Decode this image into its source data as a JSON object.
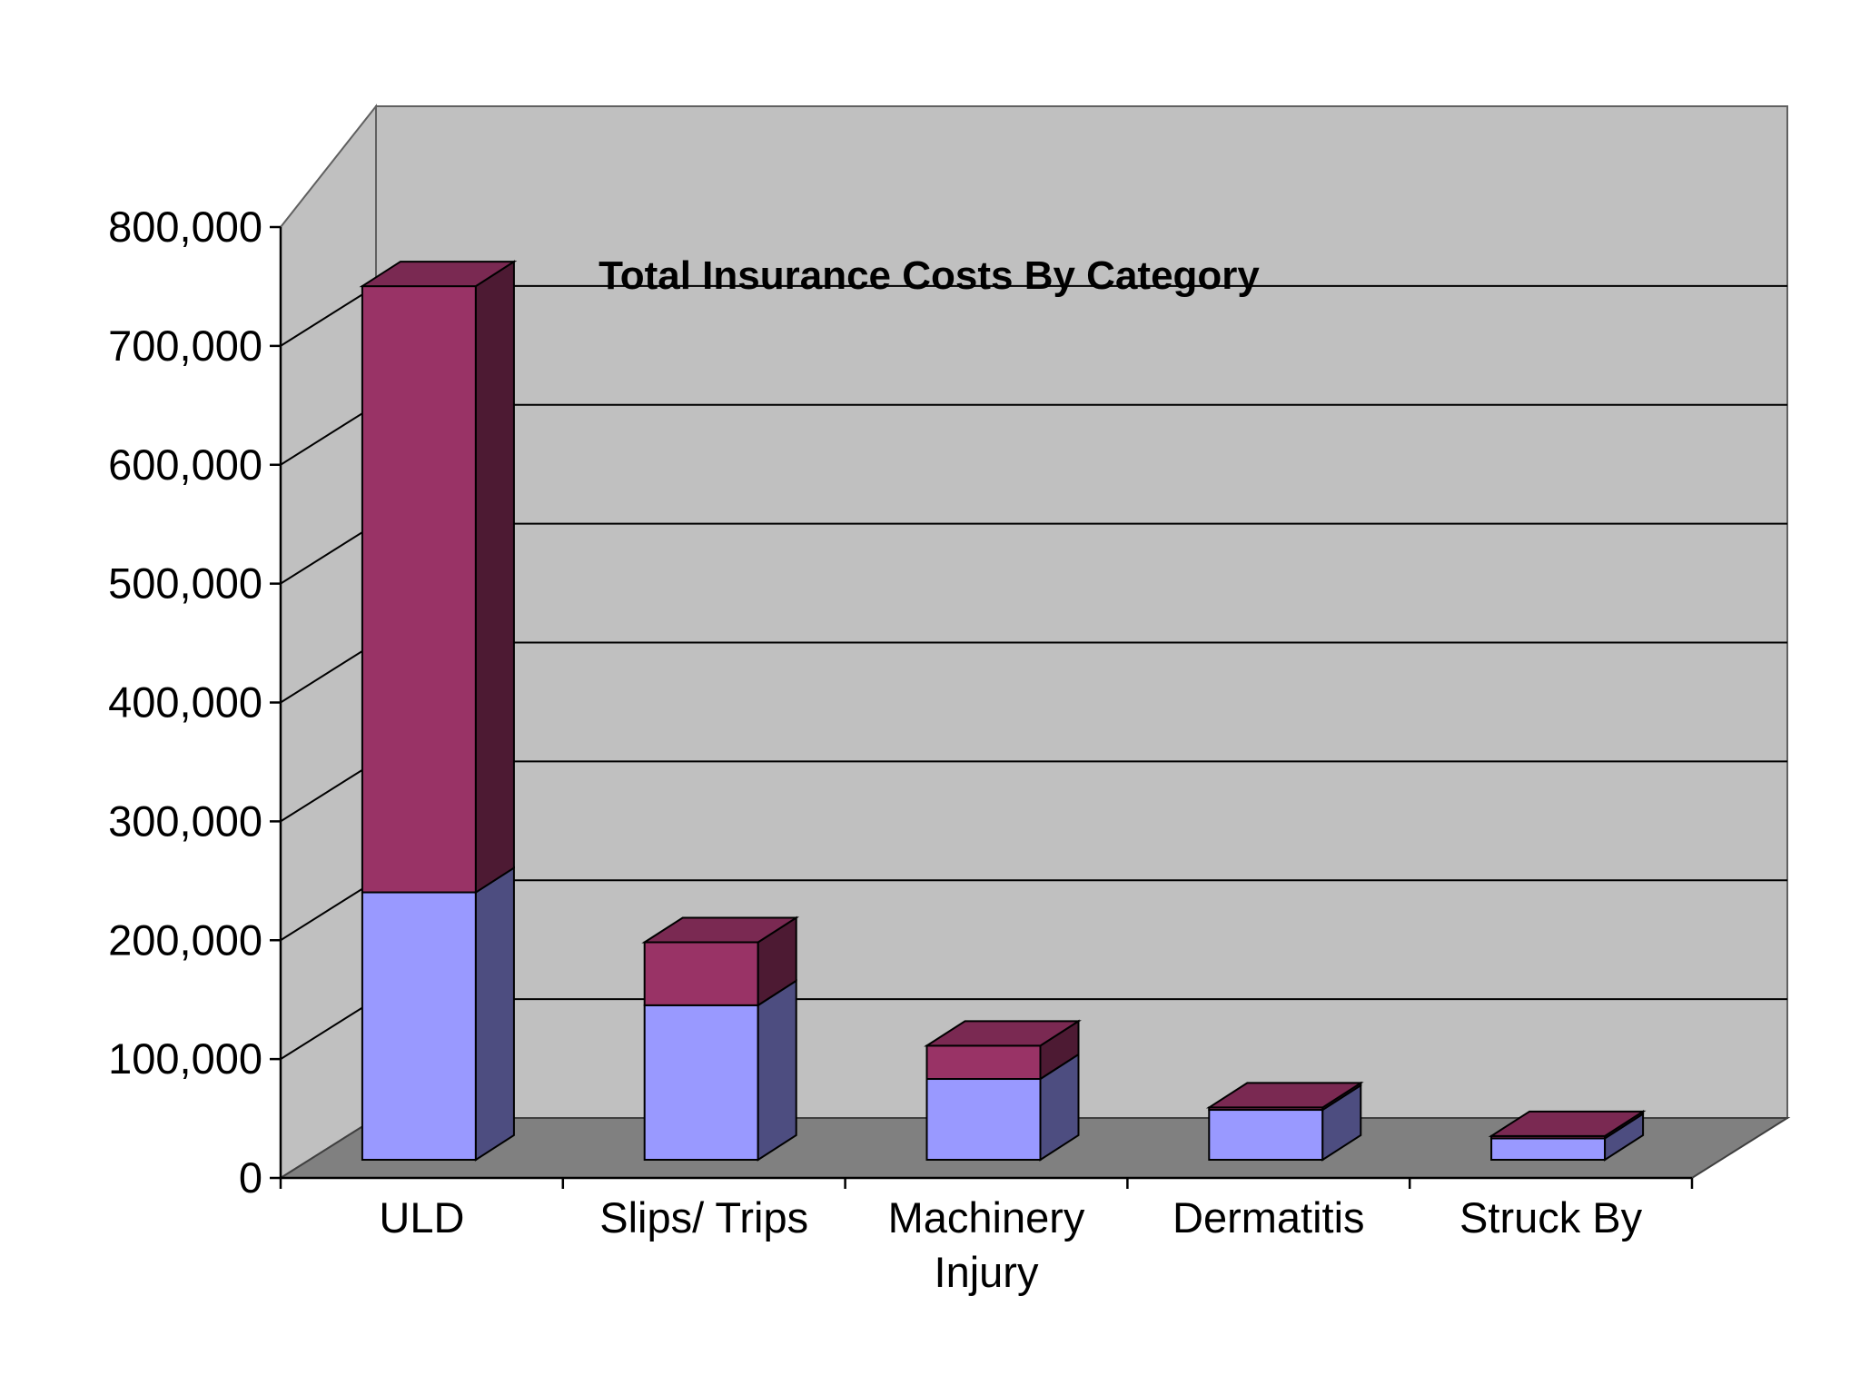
{
  "chart_data": {
    "type": "bar",
    "stacked": true,
    "three_d": true,
    "title": "Total Insurance Costs By Category",
    "xlabel": "",
    "ylabel": "",
    "ylim": [
      0,
      800000
    ],
    "yticks": [
      0,
      100000,
      200000,
      300000,
      400000,
      500000,
      600000,
      700000,
      800000
    ],
    "ytick_labels": [
      "0",
      "100,000",
      "200,000",
      "300,000",
      "400,000",
      "500,000",
      "600,000",
      "700,000",
      "800,000"
    ],
    "categories": [
      "ULD",
      "Slips/ Trips",
      "Machinery Injury",
      "Dermatitis",
      "Struck By"
    ],
    "category_lines": [
      [
        "ULD"
      ],
      [
        "Slips/ Trips"
      ],
      [
        "Machinery",
        "Injury"
      ],
      [
        "Dermatitis"
      ],
      [
        "Struck By"
      ]
    ],
    "series": [
      {
        "values": [
          225000,
          130000,
          68000,
          42000,
          18000
        ],
        "color": "#9999ff"
      },
      {
        "values": [
          510000,
          53000,
          28000,
          2000,
          2000
        ],
        "color": "#993366"
      }
    ],
    "grid": true,
    "legend": "none",
    "colors": {
      "back_wall": "#c0c0c0",
      "side_wall": "#c0c0c0",
      "floor": "#808080"
    }
  }
}
